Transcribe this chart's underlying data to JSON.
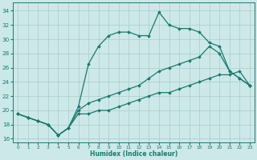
{
  "xlabel": "Humidex (Indice chaleur)",
  "xlim": [
    -0.5,
    23.5
  ],
  "ylim": [
    15.5,
    35.2
  ],
  "yticks": [
    16,
    18,
    20,
    22,
    24,
    26,
    28,
    30,
    32,
    34
  ],
  "xticks": [
    0,
    1,
    2,
    3,
    4,
    5,
    6,
    7,
    8,
    9,
    10,
    11,
    12,
    13,
    14,
    15,
    16,
    17,
    18,
    19,
    20,
    21,
    22,
    23
  ],
  "bg_color": "#cce8e8",
  "line_color": "#1a7a6e",
  "grid_color": "#aacccc",
  "series1": [
    19.5,
    19.0,
    18.5,
    18.0,
    16.5,
    17.5,
    20.5,
    26.5,
    29.0,
    30.5,
    31.0,
    31.0,
    30.5,
    30.5,
    33.8,
    32.0,
    31.5,
    31.5,
    31.0,
    29.5,
    29.0,
    25.5,
    24.5,
    23.5
  ],
  "series2": [
    19.5,
    19.0,
    18.5,
    18.0,
    16.5,
    17.5,
    20.0,
    21.0,
    21.5,
    22.0,
    22.5,
    23.0,
    23.5,
    24.5,
    25.5,
    26.0,
    26.5,
    27.0,
    27.5,
    29.0,
    28.0,
    25.5,
    24.5,
    23.5
  ],
  "series3": [
    19.5,
    19.0,
    18.5,
    18.0,
    16.5,
    17.5,
    19.5,
    19.5,
    20.0,
    20.0,
    20.5,
    21.0,
    21.5,
    22.0,
    22.5,
    22.5,
    23.0,
    23.5,
    24.0,
    24.5,
    25.0,
    25.0,
    25.5,
    23.5
  ]
}
